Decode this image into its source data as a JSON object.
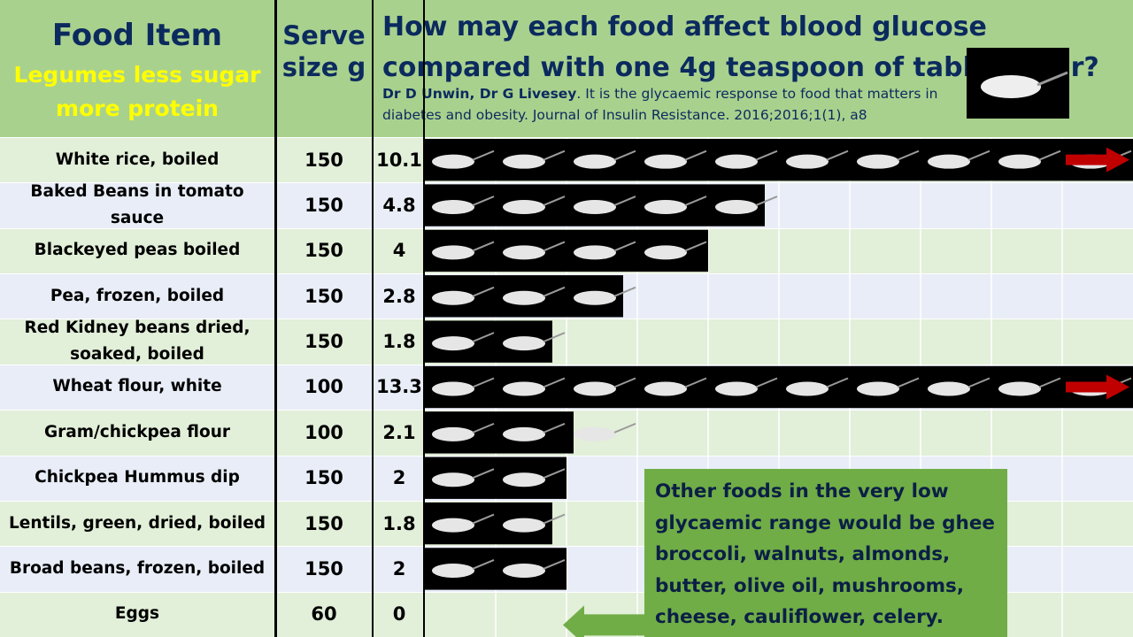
{
  "header": {
    "col1_title": "Food Item",
    "col1_subtitle": "Legumes less sugar more protein",
    "col2_title": "Serve size g",
    "title": "How may each food affect blood glucose compared with one 4g teaspoon of table sugar?",
    "citation_authors": "Dr D Unwin, Dr G Livesey",
    "citation_text": ". It is the glycaemic response  to food that matters in diabetes and obesity. Journal of Insulin Resistance. 2016;2016;1(1), a8"
  },
  "table": {
    "rows": [
      [
        "White rice, boiled",
        150,
        10.1
      ],
      [
        "Baked Beans in tomato sauce",
        150,
        4.8
      ],
      [
        "Blackeyed peas boiled",
        150,
        4
      ],
      [
        "Pea, frozen, boiled",
        150,
        2.8
      ],
      [
        "Red Kidney beans dried, soaked, boiled",
        150,
        1.8
      ],
      [
        "Wheat flour, white",
        100,
        13.3
      ],
      [
        "Gram/chickpea flour",
        100,
        2.1
      ],
      [
        "Chickpea Hummus dip",
        150,
        2
      ],
      [
        "Lentils, green, dried, boiled",
        150,
        1.8
      ],
      [
        "Broad beans, frozen, boiled",
        150,
        2
      ],
      [
        "Eggs",
        60,
        0
      ]
    ]
  },
  "note": "Other foods in the very low glycaemic range would be ghee broccoli, walnuts, almonds, butter, olive oil, mushrooms, cheese, cauliflower, celery."
}
